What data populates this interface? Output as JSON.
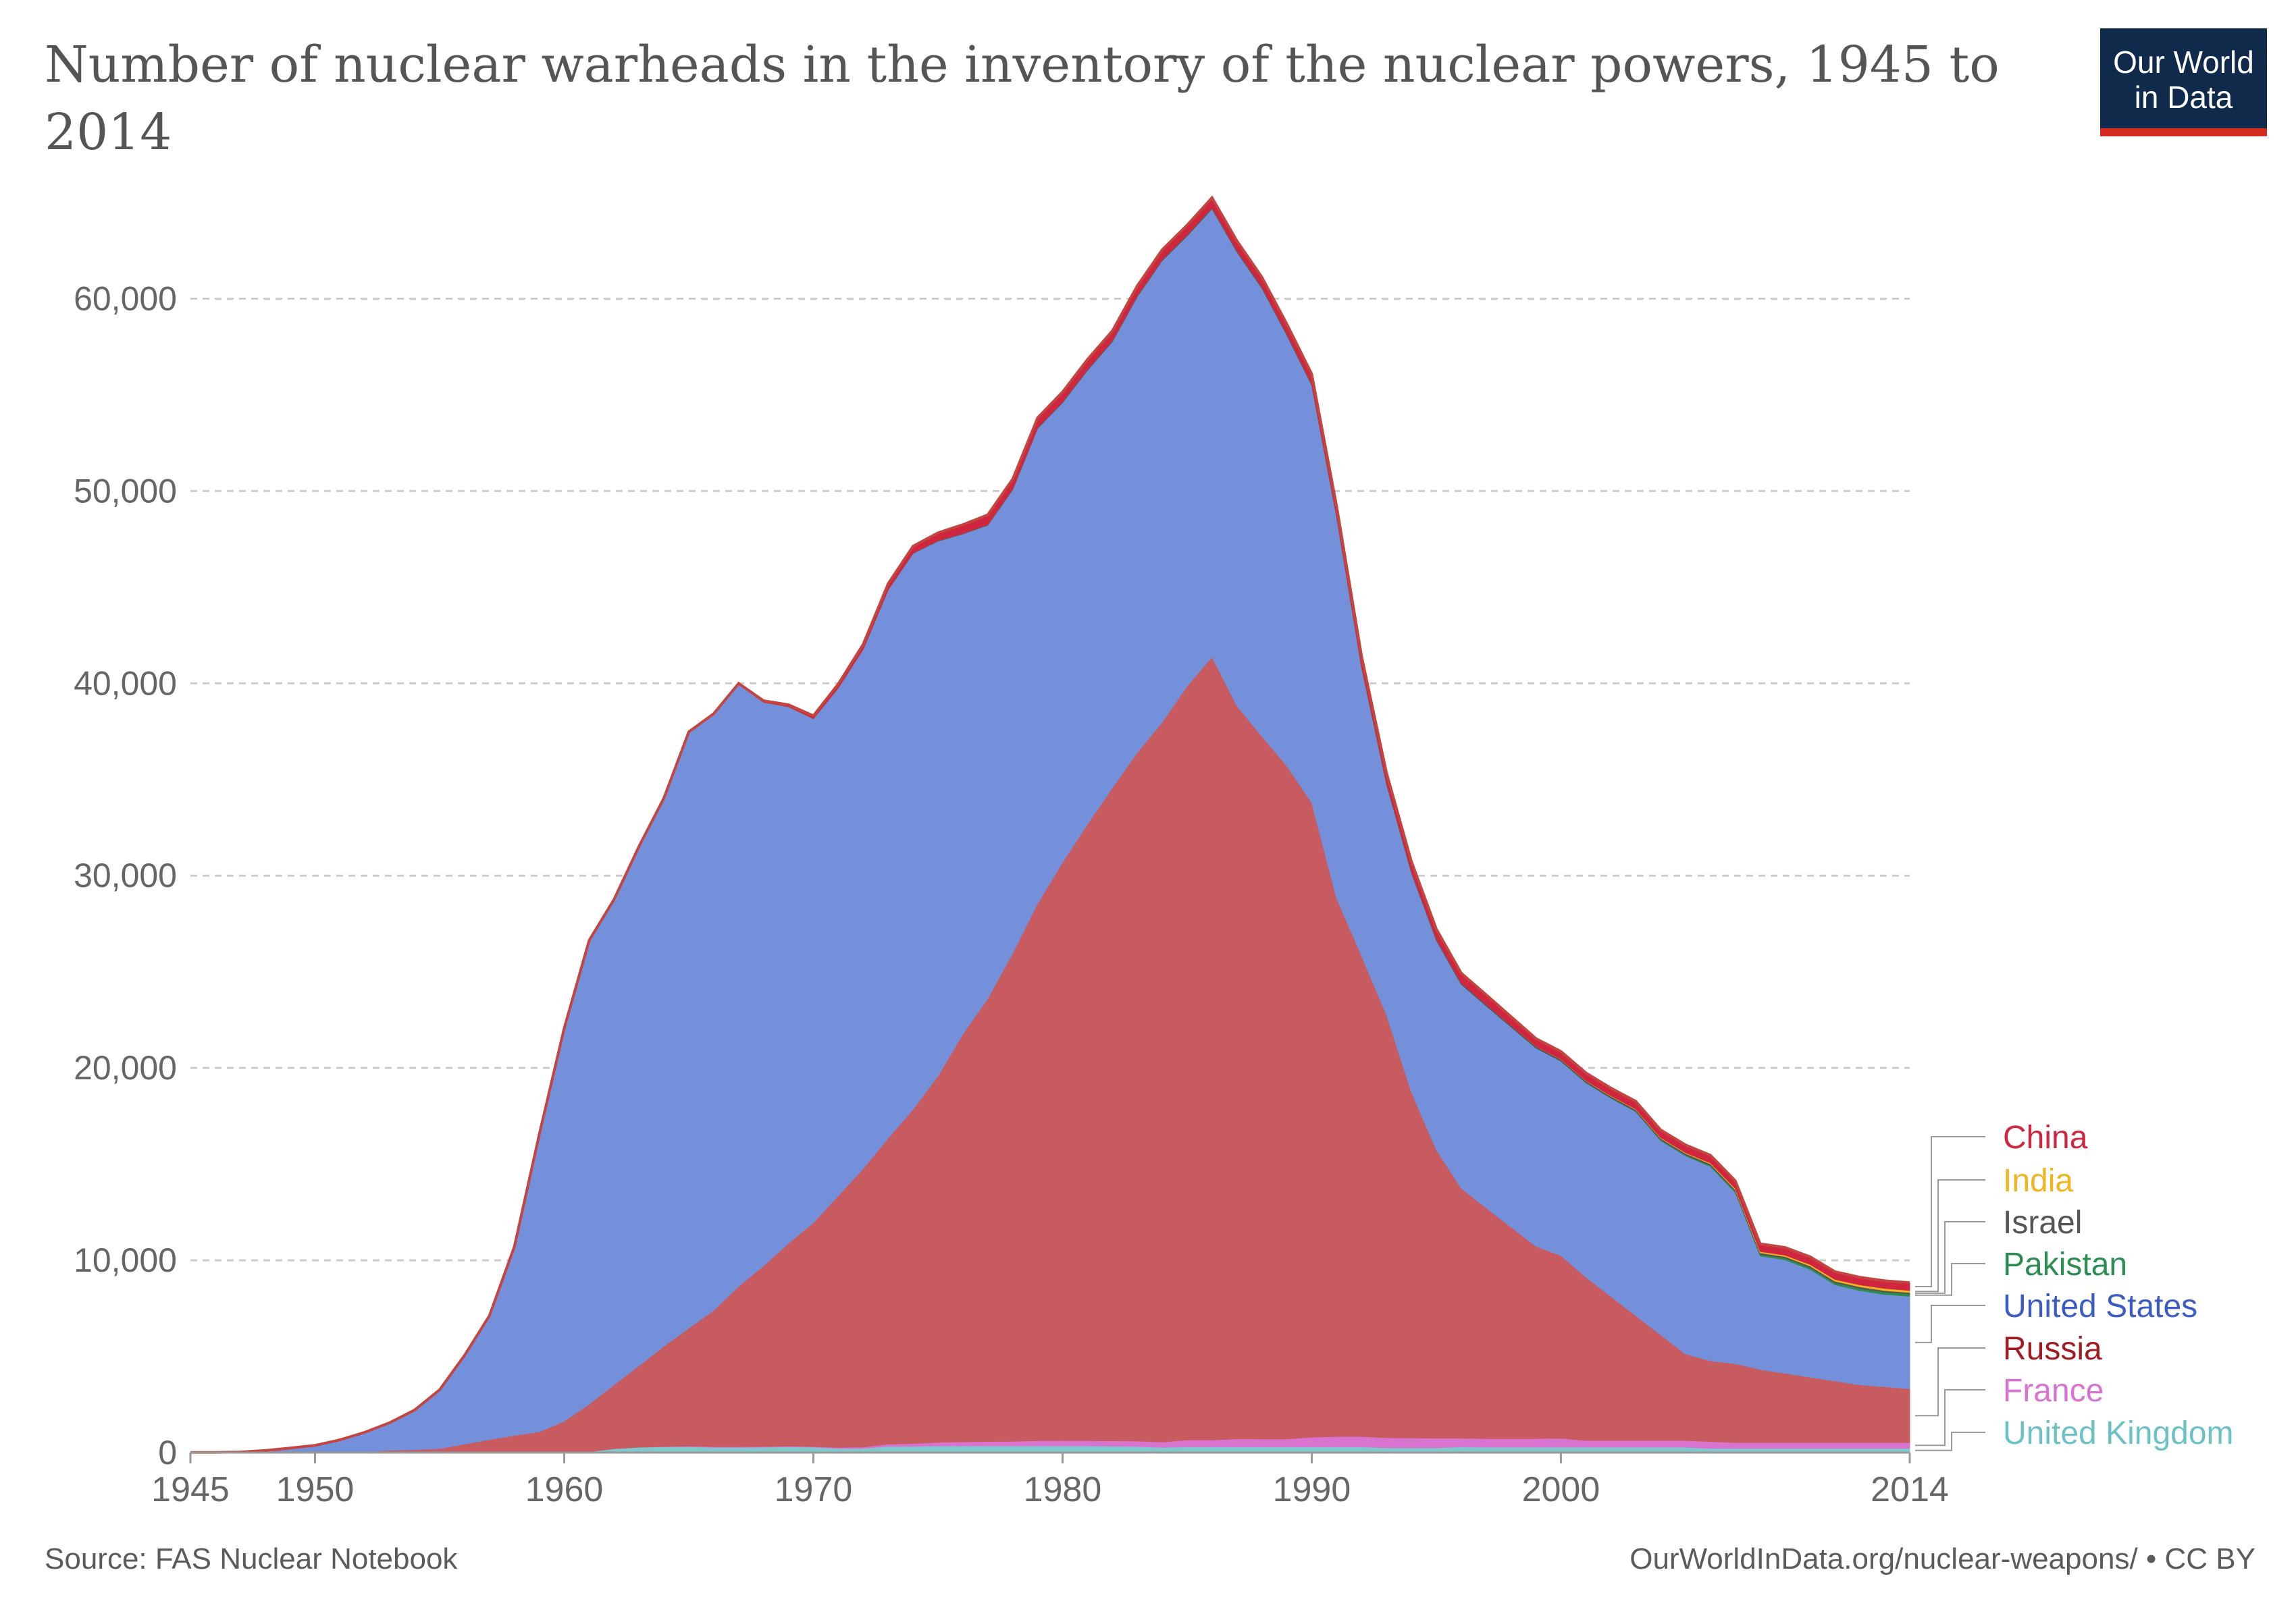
{
  "title": "Number of nuclear warheads in the inventory of the nuclear powers, 1945 to 2014",
  "logo": {
    "line1": "Our World",
    "line2": "in Data",
    "bg": "#0f2a4a",
    "accent": "#d42b21"
  },
  "footer": {
    "source": "Source: FAS Nuclear Notebook",
    "credit": "OurWorldInData.org/nuclear-weapons/ • CC BY"
  },
  "chart_data": {
    "type": "area",
    "stacked": true,
    "title": "Number of nuclear warheads in the inventory of the nuclear powers, 1945 to 2014",
    "xlabel": "",
    "ylabel": "",
    "xlim": [
      1945,
      2014
    ],
    "ylim": [
      0,
      65000
    ],
    "x_ticks": [
      1945,
      1950,
      1960,
      1970,
      1980,
      1990,
      2000,
      2014
    ],
    "y_ticks": [
      0,
      10000,
      20000,
      30000,
      40000,
      50000,
      60000
    ],
    "y_tick_labels": [
      "0",
      "10,000",
      "20,000",
      "30,000",
      "40,000",
      "50,000",
      "60,000"
    ],
    "grid": true,
    "legend_position": "right",
    "x": [
      1945,
      1946,
      1947,
      1948,
      1949,
      1950,
      1951,
      1952,
      1953,
      1954,
      1955,
      1956,
      1957,
      1958,
      1959,
      1960,
      1961,
      1962,
      1963,
      1964,
      1965,
      1966,
      1967,
      1968,
      1969,
      1970,
      1971,
      1972,
      1973,
      1974,
      1975,
      1976,
      1977,
      1978,
      1979,
      1980,
      1981,
      1982,
      1983,
      1984,
      1985,
      1986,
      1987,
      1988,
      1989,
      1990,
      1991,
      1992,
      1993,
      1994,
      1995,
      1996,
      1997,
      1998,
      1999,
      2000,
      2001,
      2002,
      2003,
      2004,
      2005,
      2006,
      2007,
      2008,
      2009,
      2010,
      2011,
      2012,
      2013,
      2014
    ],
    "series": [
      {
        "name": "United Kingdom",
        "color": "#7fc9cc",
        "values": [
          0,
          0,
          0,
          0,
          0,
          0,
          0,
          0,
          1,
          5,
          10,
          15,
          20,
          22,
          25,
          30,
          50,
          205,
          280,
          310,
          310,
          270,
          270,
          280,
          308,
          280,
          220,
          220,
          325,
          325,
          350,
          350,
          350,
          350,
          350,
          350,
          350,
          335,
          320,
          270,
          300,
          300,
          300,
          300,
          300,
          300,
          300,
          300,
          250,
          250,
          250,
          300,
          280,
          280,
          280,
          280,
          280,
          280,
          280,
          280,
          280,
          225,
          225,
          225,
          225,
          225,
          225,
          225,
          225,
          225
        ]
      },
      {
        "name": "France",
        "color": "#d873d0",
        "values": [
          0,
          0,
          0,
          0,
          0,
          0,
          0,
          0,
          0,
          0,
          0,
          0,
          0,
          0,
          0,
          0,
          0,
          0,
          0,
          4,
          32,
          36,
          36,
          36,
          36,
          36,
          45,
          70,
          116,
          145,
          188,
          212,
          228,
          235,
          274,
          279,
          274,
          279,
          280,
          280,
          360,
          355,
          420,
          410,
          410,
          505,
          540,
          540,
          525,
          510,
          500,
          450,
          450,
          450,
          450,
          470,
          350,
          350,
          350,
          350,
          350,
          350,
          300,
          300,
          300,
          300,
          300,
          300,
          300,
          300
        ]
      },
      {
        "name": "Russia",
        "color": "#c75b5f",
        "values": [
          0,
          0,
          0,
          0,
          1,
          5,
          25,
          50,
          120,
          150,
          200,
          426,
          660,
          869,
          1060,
          1605,
          2471,
          3322,
          4238,
          5221,
          6129,
          7089,
          8339,
          9399,
          10538,
          11643,
          13092,
          14478,
          15915,
          17385,
          19055,
          21205,
          23044,
          25393,
          27935,
          30062,
          32049,
          33952,
          35804,
          37431,
          39197,
          40723,
          38107,
          36538,
          35000,
          33000,
          28000,
          25000,
          22000,
          18000,
          15000,
          13000,
          12000,
          11000,
          10000,
          9500,
          8500,
          7500,
          6500,
          5500,
          4500,
          4200,
          4100,
          3800,
          3600,
          3400,
          3200,
          3000,
          2900,
          2800
        ]
      },
      {
        "name": "United States",
        "color": "#7590db",
        "values": [
          6,
          11,
          32,
          110,
          235,
          369,
          640,
          1005,
          1436,
          2063,
          3057,
          4618,
          6444,
          9822,
          15468,
          20434,
          24111,
          25239,
          27000,
          28500,
          31000,
          31000,
          31300,
          29300,
          27900,
          26200,
          26400,
          27000,
          28500,
          28900,
          27800,
          26000,
          24600,
          24100,
          24700,
          23900,
          23600,
          23200,
          23700,
          24000,
          23400,
          23300,
          23600,
          23300,
          22400,
          21700,
          19800,
          15000,
          12000,
          11400,
          10900,
          10600,
          10500,
          10400,
          10300,
          10100,
          10100,
          10300,
          10600,
          10100,
          10300,
          10100,
          8900,
          5900,
          5900,
          5600,
          5000,
          4900,
          4800,
          4800
        ]
      },
      {
        "name": "Pakistan",
        "color": "#2b8d50",
        "values": [
          0,
          0,
          0,
          0,
          0,
          0,
          0,
          0,
          0,
          0,
          0,
          0,
          0,
          0,
          0,
          0,
          0,
          0,
          0,
          0,
          0,
          0,
          0,
          0,
          0,
          0,
          0,
          0,
          0,
          0,
          0,
          0,
          0,
          0,
          0,
          0,
          0,
          0,
          0,
          0,
          0,
          0,
          0,
          0,
          0,
          0,
          0,
          0,
          0,
          0,
          0,
          0,
          0,
          5,
          10,
          15,
          20,
          25,
          30,
          40,
          50,
          60,
          70,
          80,
          90,
          100,
          110,
          115,
          120,
          120
        ]
      },
      {
        "name": "Israel",
        "color": "#555555",
        "values": [
          0,
          0,
          0,
          0,
          0,
          0,
          0,
          0,
          0,
          0,
          0,
          0,
          0,
          0,
          0,
          0,
          0,
          0,
          0,
          0,
          0,
          0,
          2,
          4,
          6,
          8,
          10,
          15,
          20,
          25,
          30,
          35,
          40,
          45,
          50,
          55,
          60,
          60,
          60,
          60,
          65,
          70,
          75,
          75,
          80,
          80,
          80,
          80,
          80,
          80,
          80,
          80,
          80,
          80,
          80,
          80,
          80,
          80,
          80,
          80,
          80,
          80,
          80,
          80,
          80,
          80,
          80,
          80,
          80,
          80
        ]
      },
      {
        "name": "India",
        "color": "#f2b41f",
        "values": [
          0,
          0,
          0,
          0,
          0,
          0,
          0,
          0,
          0,
          0,
          0,
          0,
          0,
          0,
          0,
          0,
          0,
          0,
          0,
          0,
          0,
          0,
          0,
          0,
          0,
          0,
          0,
          0,
          0,
          0,
          0,
          0,
          0,
          0,
          0,
          0,
          0,
          0,
          0,
          0,
          0,
          0,
          0,
          0,
          0,
          0,
          0,
          0,
          0,
          0,
          0,
          0,
          0,
          5,
          10,
          15,
          20,
          25,
          30,
          35,
          40,
          50,
          60,
          70,
          70,
          80,
          90,
          100,
          110,
          110
        ]
      },
      {
        "name": "China",
        "color": "#d0253f",
        "values": [
          0,
          0,
          0,
          0,
          0,
          0,
          0,
          0,
          0,
          0,
          0,
          0,
          0,
          0,
          0,
          0,
          0,
          0,
          0,
          0,
          5,
          25,
          50,
          75,
          100,
          150,
          200,
          250,
          300,
          350,
          400,
          450,
          500,
          500,
          500,
          500,
          500,
          500,
          500,
          500,
          500,
          500,
          500,
          500,
          500,
          500,
          500,
          500,
          500,
          500,
          500,
          500,
          500,
          450,
          400,
          400,
          400,
          400,
          400,
          400,
          400,
          400,
          400,
          400,
          400,
          400,
          400,
          400,
          400,
          400
        ]
      }
    ]
  }
}
